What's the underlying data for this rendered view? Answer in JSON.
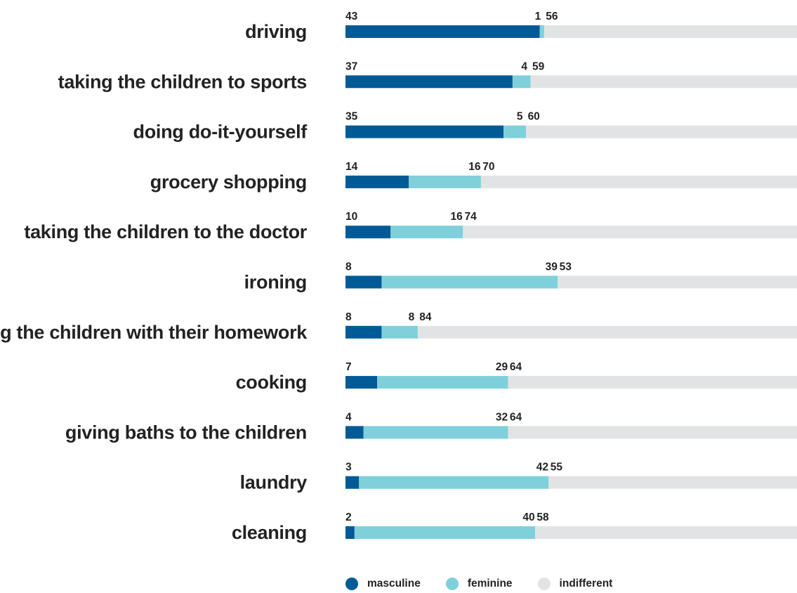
{
  "chart_data": {
    "type": "bar",
    "orientation": "horizontal",
    "stacked": true,
    "categories": [
      "driving",
      "taking the children to sports",
      "doing do-it-yourself",
      "grocery shopping",
      "taking the children to the doctor",
      "ironing",
      "helping the children with their homework",
      "cooking",
      "giving baths to the children",
      "laundry",
      "cleaning"
    ],
    "series": [
      {
        "name": "masculine",
        "color": "#005a96",
        "values": [
          43,
          37,
          35,
          14,
          10,
          8,
          8,
          7,
          4,
          3,
          2
        ]
      },
      {
        "name": "feminine",
        "color": "#7fd0da",
        "values": [
          1,
          4,
          5,
          16,
          16,
          39,
          8,
          29,
          32,
          42,
          40
        ]
      },
      {
        "name": "indifferent",
        "color": "#e2e3e5",
        "values": [
          56,
          59,
          60,
          70,
          74,
          53,
          84,
          64,
          64,
          55,
          58
        ]
      }
    ],
    "xlim": [
      0,
      100
    ],
    "unit": "%",
    "grid": false,
    "legend_position": "bottom"
  }
}
